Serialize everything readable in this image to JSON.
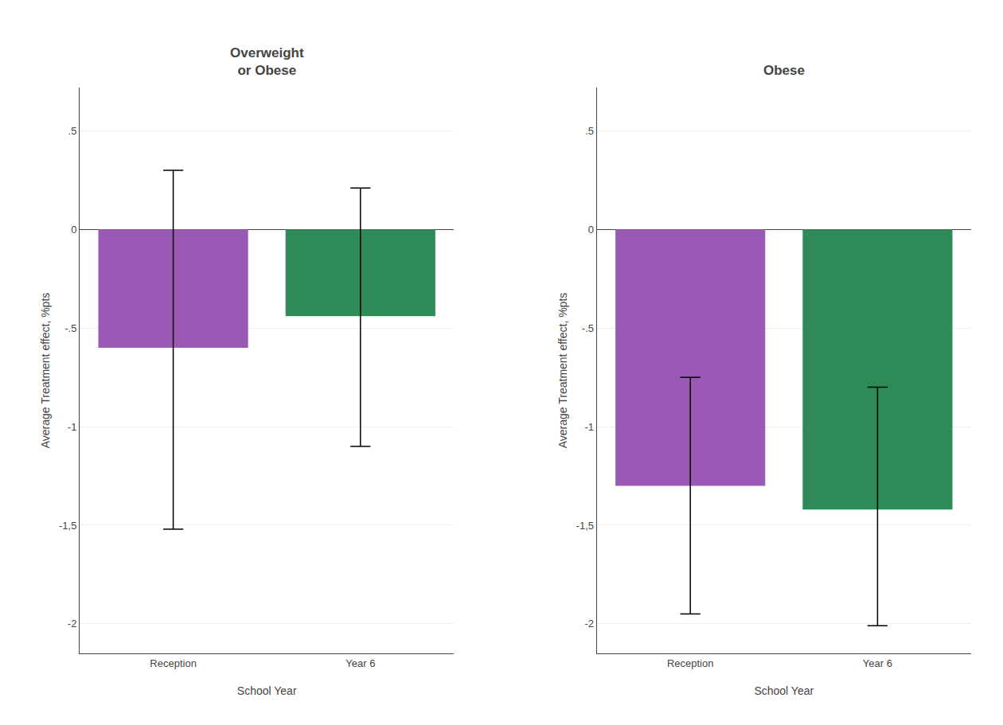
{
  "chart_data": [
    {
      "type": "bar",
      "title": "Overweight\nor Obese",
      "xlabel": "School Year",
      "ylabel": "Average Treatment effect, %pts",
      "categories": [
        "Reception",
        "Year 6"
      ],
      "values": [
        -0.6,
        -0.44
      ],
      "ci_low": [
        -1.52,
        -1.1
      ],
      "ci_high": [
        0.3,
        0.21
      ],
      "colors": [
        "#9B59B6",
        "#2E8B57"
      ],
      "ylim": [
        -2.15,
        0.72
      ],
      "yticks": [
        {
          "value": 0.5,
          "label": ".5"
        },
        0,
        {
          "value": -0.5,
          "label": "-.5"
        },
        -1,
        {
          "value": -1.5,
          "label": "-1,5"
        },
        -2
      ],
      "grid": true
    },
    {
      "type": "bar",
      "title": "Obese",
      "xlabel": "School Year",
      "ylabel": "Average Treatment effect, %pts",
      "categories": [
        "Reception",
        "Year 6"
      ],
      "values": [
        -1.3,
        -1.42
      ],
      "ci_low": [
        -1.95,
        -2.01
      ],
      "ci_high": [
        -0.75,
        -0.8
      ],
      "colors": [
        "#9B59B6",
        "#2E8B57"
      ],
      "ylim": [
        -2.15,
        0.72
      ],
      "yticks": [
        {
          "value": 0.5,
          "label": ".5"
        },
        0,
        {
          "value": -0.5,
          "label": "-.5"
        },
        -1,
        {
          "value": -1.5,
          "label": "-1,5"
        },
        -2
      ],
      "grid": true
    }
  ]
}
